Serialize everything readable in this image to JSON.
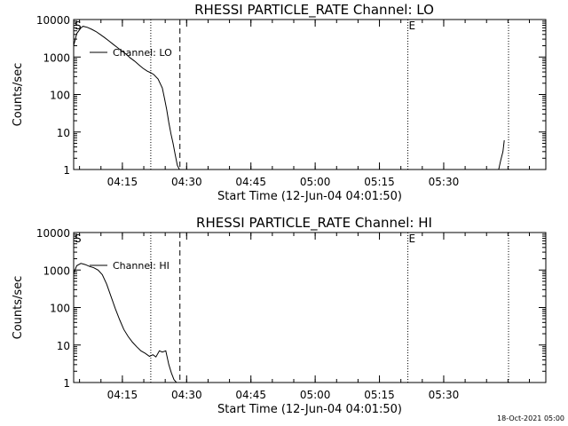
{
  "footer": {
    "timestamp": "18-Oct-2021 05:00"
  },
  "chart_data": [
    {
      "type": "line",
      "title": "RHESSI PARTICLE_RATE Channel: LO",
      "xlabel": "Start Time (12-Jun-04 04:01:50)",
      "ylabel": "Counts/sec",
      "yscale": "log",
      "xlim_minutes": [
        1.8,
        39.8
      ],
      "ylim": [
        1,
        10000
      ],
      "xticks": [
        "04:15",
        "04:30",
        "04:45",
        "05:00",
        "05:15",
        "05:30"
      ],
      "yticks": [
        "1",
        "10",
        "100",
        "1000",
        "10000"
      ],
      "legend": {
        "label": "Channel: LO",
        "position": "top-left"
      },
      "markers": [
        {
          "label": "S"
        },
        {
          "label": "E"
        }
      ],
      "dotted_lines_minutes": [
        19.8,
        79.8,
        103.3
      ],
      "dashed_lines_minutes": [
        26.6
      ],
      "series": [
        {
          "name": "Channel: LO",
          "x_minutes": [
            1.8,
            2.5,
            3.5,
            4.0,
            5.0,
            6.0,
            7.0,
            8.0,
            9.0,
            10.0,
            11.0,
            12.0,
            13.0,
            14.0,
            15.0,
            16.0,
            17.0,
            18.0,
            19.0,
            19.8,
            20.5,
            21.5,
            22.5,
            23.0,
            23.5,
            24.0,
            24.5,
            25.0,
            25.5,
            26.0,
            26.5
          ],
          "values": [
            2000,
            4200,
            6000,
            6600,
            6200,
            5500,
            4800,
            4000,
            3300,
            2700,
            2200,
            1800,
            1450,
            1200,
            950,
            780,
            620,
            500,
            420,
            380,
            340,
            260,
            150,
            80,
            40,
            18,
            9,
            5,
            2.5,
            1.3,
            1.0
          ]
        },
        {
          "name": "Channel: LO (end)",
          "x_minutes": [
            101.0,
            101.5,
            102.0,
            102.3
          ],
          "values": [
            1.0,
            1.8,
            3.0,
            6.0
          ]
        }
      ]
    },
    {
      "type": "line",
      "title": "RHESSI PARTICLE_RATE Channel: HI",
      "xlabel": "Start Time (12-Jun-04 04:01:50)",
      "ylabel": "Counts/sec",
      "yscale": "log",
      "xlim_minutes": [
        1.8,
        39.8
      ],
      "ylim": [
        1,
        10000
      ],
      "xticks": [
        "04:15",
        "04:30",
        "04:45",
        "05:00",
        "05:15",
        "05:30"
      ],
      "yticks": [
        "1",
        "10",
        "100",
        "1000",
        "10000"
      ],
      "legend": {
        "label": "Channel: HI",
        "position": "top-left"
      },
      "markers": [
        {
          "label": "S"
        },
        {
          "label": "E"
        }
      ],
      "dotted_lines_minutes": [
        19.8,
        79.8,
        103.3
      ],
      "dashed_lines_minutes": [
        26.6
      ],
      "series": [
        {
          "name": "Channel: HI",
          "x_minutes": [
            1.8,
            2.5,
            3.5,
            4.5,
            5.5,
            6.5,
            7.5,
            8.5,
            9.5,
            10.5,
            11.5,
            12.5,
            13.5,
            14.5,
            15.5,
            16.5,
            17.5,
            18.5,
            19.5,
            20.3,
            21.0,
            21.8,
            22.5,
            23.3,
            24.0,
            24.6,
            25.2,
            25.8
          ],
          "values": [
            800,
            1300,
            1500,
            1400,
            1250,
            1150,
            1000,
            750,
            420,
            200,
            95,
            48,
            26,
            17,
            12,
            9,
            7,
            6,
            5,
            5.5,
            4.8,
            7,
            6.5,
            7,
            3,
            1.8,
            1.2,
            1.0
          ]
        }
      ]
    }
  ]
}
